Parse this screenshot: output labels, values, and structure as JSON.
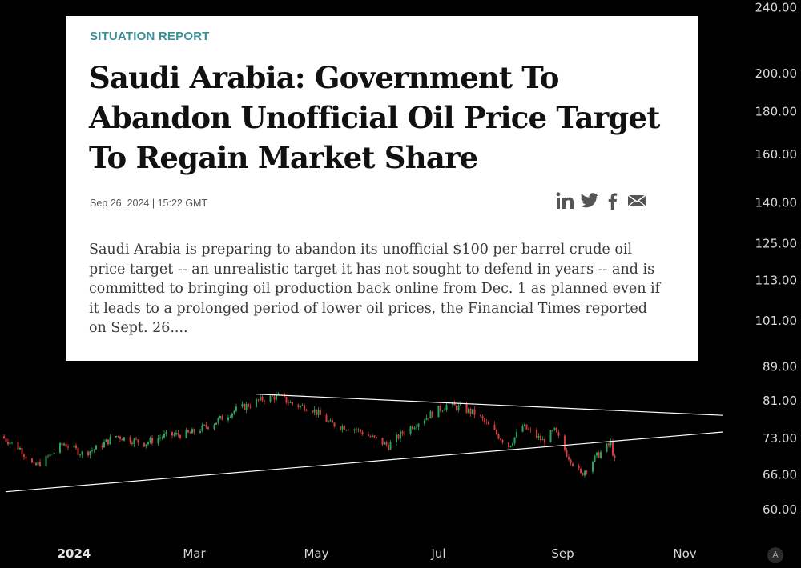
{
  "article": {
    "kicker": "SITUATION REPORT",
    "title": "Saudi Arabia: Government To Abandon Unofficial Oil Price Target To Regain Market Share",
    "date": "Sep 26, 2024 | 15:22 GMT",
    "share_icons": [
      "linkedin-icon",
      "twitter-icon",
      "facebook-icon",
      "mail-icon"
    ],
    "body": "Saudi Arabia is preparing to abandon its unofficial $100 per barrel crude oil price target -- an unrealistic target it has not sought to defend in years -- and is committed to bringing oil production back online from Dec. 1 as planned even if it leads to a prolonged period of lower oil prices, the Financial Times reported on Sept. 26...."
  },
  "avatar_label": "A",
  "chart_data": {
    "type": "candlestick",
    "y_scale": "log",
    "ylim": [
      57,
      245
    ],
    "yticks": [
      "240.00",
      "200.00",
      "180.00",
      "160.00",
      "140.00",
      "125.00",
      "113.00",
      "101.00",
      "89.00",
      "81.00",
      "73.00",
      "66.00",
      "60.00"
    ],
    "ytick_values": [
      240,
      200,
      180,
      160,
      140,
      125,
      113,
      101,
      89,
      81,
      73,
      66,
      60
    ],
    "x_range": [
      "2023-11-25",
      "2024-11-25"
    ],
    "xticks": [
      {
        "label": "2024",
        "date": "2024-01-01",
        "bold": true
      },
      {
        "label": "Mar",
        "date": "2024-03-01"
      },
      {
        "label": "May",
        "date": "2024-05-01"
      },
      {
        "label": "Jul",
        "date": "2024-07-01"
      },
      {
        "label": "Sep",
        "date": "2024-09-01"
      },
      {
        "label": "Nov",
        "date": "2024-11-01"
      }
    ],
    "colors": {
      "up": "#26a65b",
      "down": "#d63a3a",
      "trendline": "#ffffff",
      "grid_tick": "#d9d9d9"
    },
    "price_path": [
      {
        "date": "2023-11-25",
        "price": 73.5
      },
      {
        "date": "2023-12-05",
        "price": 71
      },
      {
        "date": "2023-12-12",
        "price": 67.5
      },
      {
        "date": "2023-12-18",
        "price": 69
      },
      {
        "date": "2023-12-27",
        "price": 72
      },
      {
        "date": "2024-01-05",
        "price": 70
      },
      {
        "date": "2024-01-12",
        "price": 71
      },
      {
        "date": "2024-01-22",
        "price": 73.5
      },
      {
        "date": "2024-02-05",
        "price": 72
      },
      {
        "date": "2024-02-15",
        "price": 73.5
      },
      {
        "date": "2024-02-28",
        "price": 74
      },
      {
        "date": "2024-03-10",
        "price": 76
      },
      {
        "date": "2024-03-22",
        "price": 79
      },
      {
        "date": "2024-04-05",
        "price": 81.5
      },
      {
        "date": "2024-04-12",
        "price": 82
      },
      {
        "date": "2024-04-20",
        "price": 80
      },
      {
        "date": "2024-04-28",
        "price": 79.5
      },
      {
        "date": "2024-05-08",
        "price": 76
      },
      {
        "date": "2024-05-20",
        "price": 75
      },
      {
        "date": "2024-06-01",
        "price": 72.5
      },
      {
        "date": "2024-06-06",
        "price": 71.5
      },
      {
        "date": "2024-06-14",
        "price": 74.5
      },
      {
        "date": "2024-06-25",
        "price": 77.5
      },
      {
        "date": "2024-07-05",
        "price": 80
      },
      {
        "date": "2024-07-12",
        "price": 79.5
      },
      {
        "date": "2024-07-20",
        "price": 78
      },
      {
        "date": "2024-07-31",
        "price": 73.5
      },
      {
        "date": "2024-08-05",
        "price": 71.5
      },
      {
        "date": "2024-08-12",
        "price": 75.5
      },
      {
        "date": "2024-08-22",
        "price": 72.5
      },
      {
        "date": "2024-08-28",
        "price": 74.5
      },
      {
        "date": "2024-09-03",
        "price": 70
      },
      {
        "date": "2024-09-10",
        "price": 66
      },
      {
        "date": "2024-09-18",
        "price": 69.5
      },
      {
        "date": "2024-09-25",
        "price": 72
      },
      {
        "date": "2024-09-27",
        "price": 68.5
      }
    ],
    "trendlines": [
      {
        "name": "resistance",
        "from": {
          "date": "2024-04-01",
          "price": 82.5
        },
        "to": {
          "date": "2024-11-20",
          "price": 77.8
        }
      },
      {
        "name": "support",
        "from": {
          "date": "2023-11-28",
          "price": 63
        },
        "to": {
          "date": "2024-11-20",
          "price": 74.3
        }
      }
    ]
  }
}
